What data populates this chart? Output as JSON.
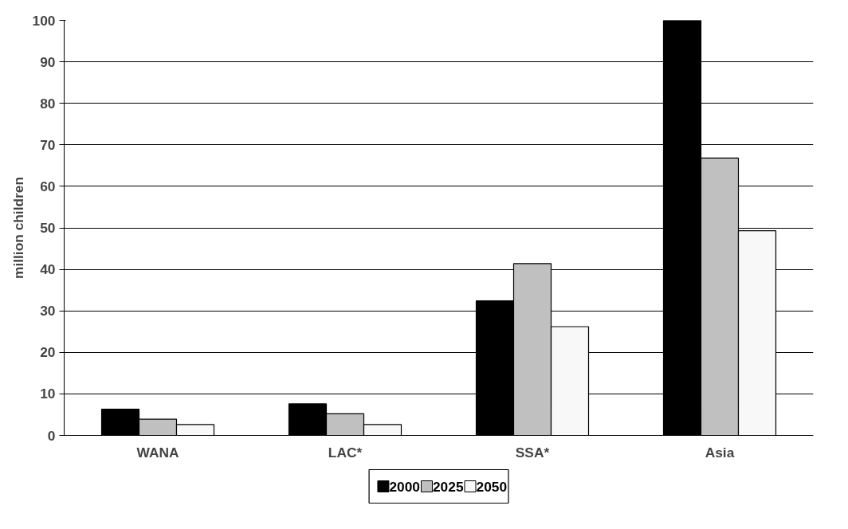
{
  "chart_data": {
    "type": "bar",
    "ylabel": "million children",
    "categories": [
      "WANA",
      "LAC*",
      "SSA*",
      "Asia"
    ],
    "series": [
      {
        "name": "2000",
        "color": "#000000",
        "values": [
          6.3,
          7.6,
          32.4,
          100
        ]
      },
      {
        "name": "2025",
        "color": "#c0c0c0",
        "values": [
          3.9,
          5.2,
          41.4,
          66.8
        ]
      },
      {
        "name": "2050",
        "color": "#f8f8f8",
        "values": [
          2.6,
          2.6,
          26.2,
          49.3
        ]
      }
    ],
    "ylim": [
      0,
      100
    ],
    "yticks": [
      0,
      10,
      20,
      30,
      40,
      50,
      60,
      70,
      80,
      90,
      100
    ],
    "grid": "y",
    "legend": "bottom"
  }
}
